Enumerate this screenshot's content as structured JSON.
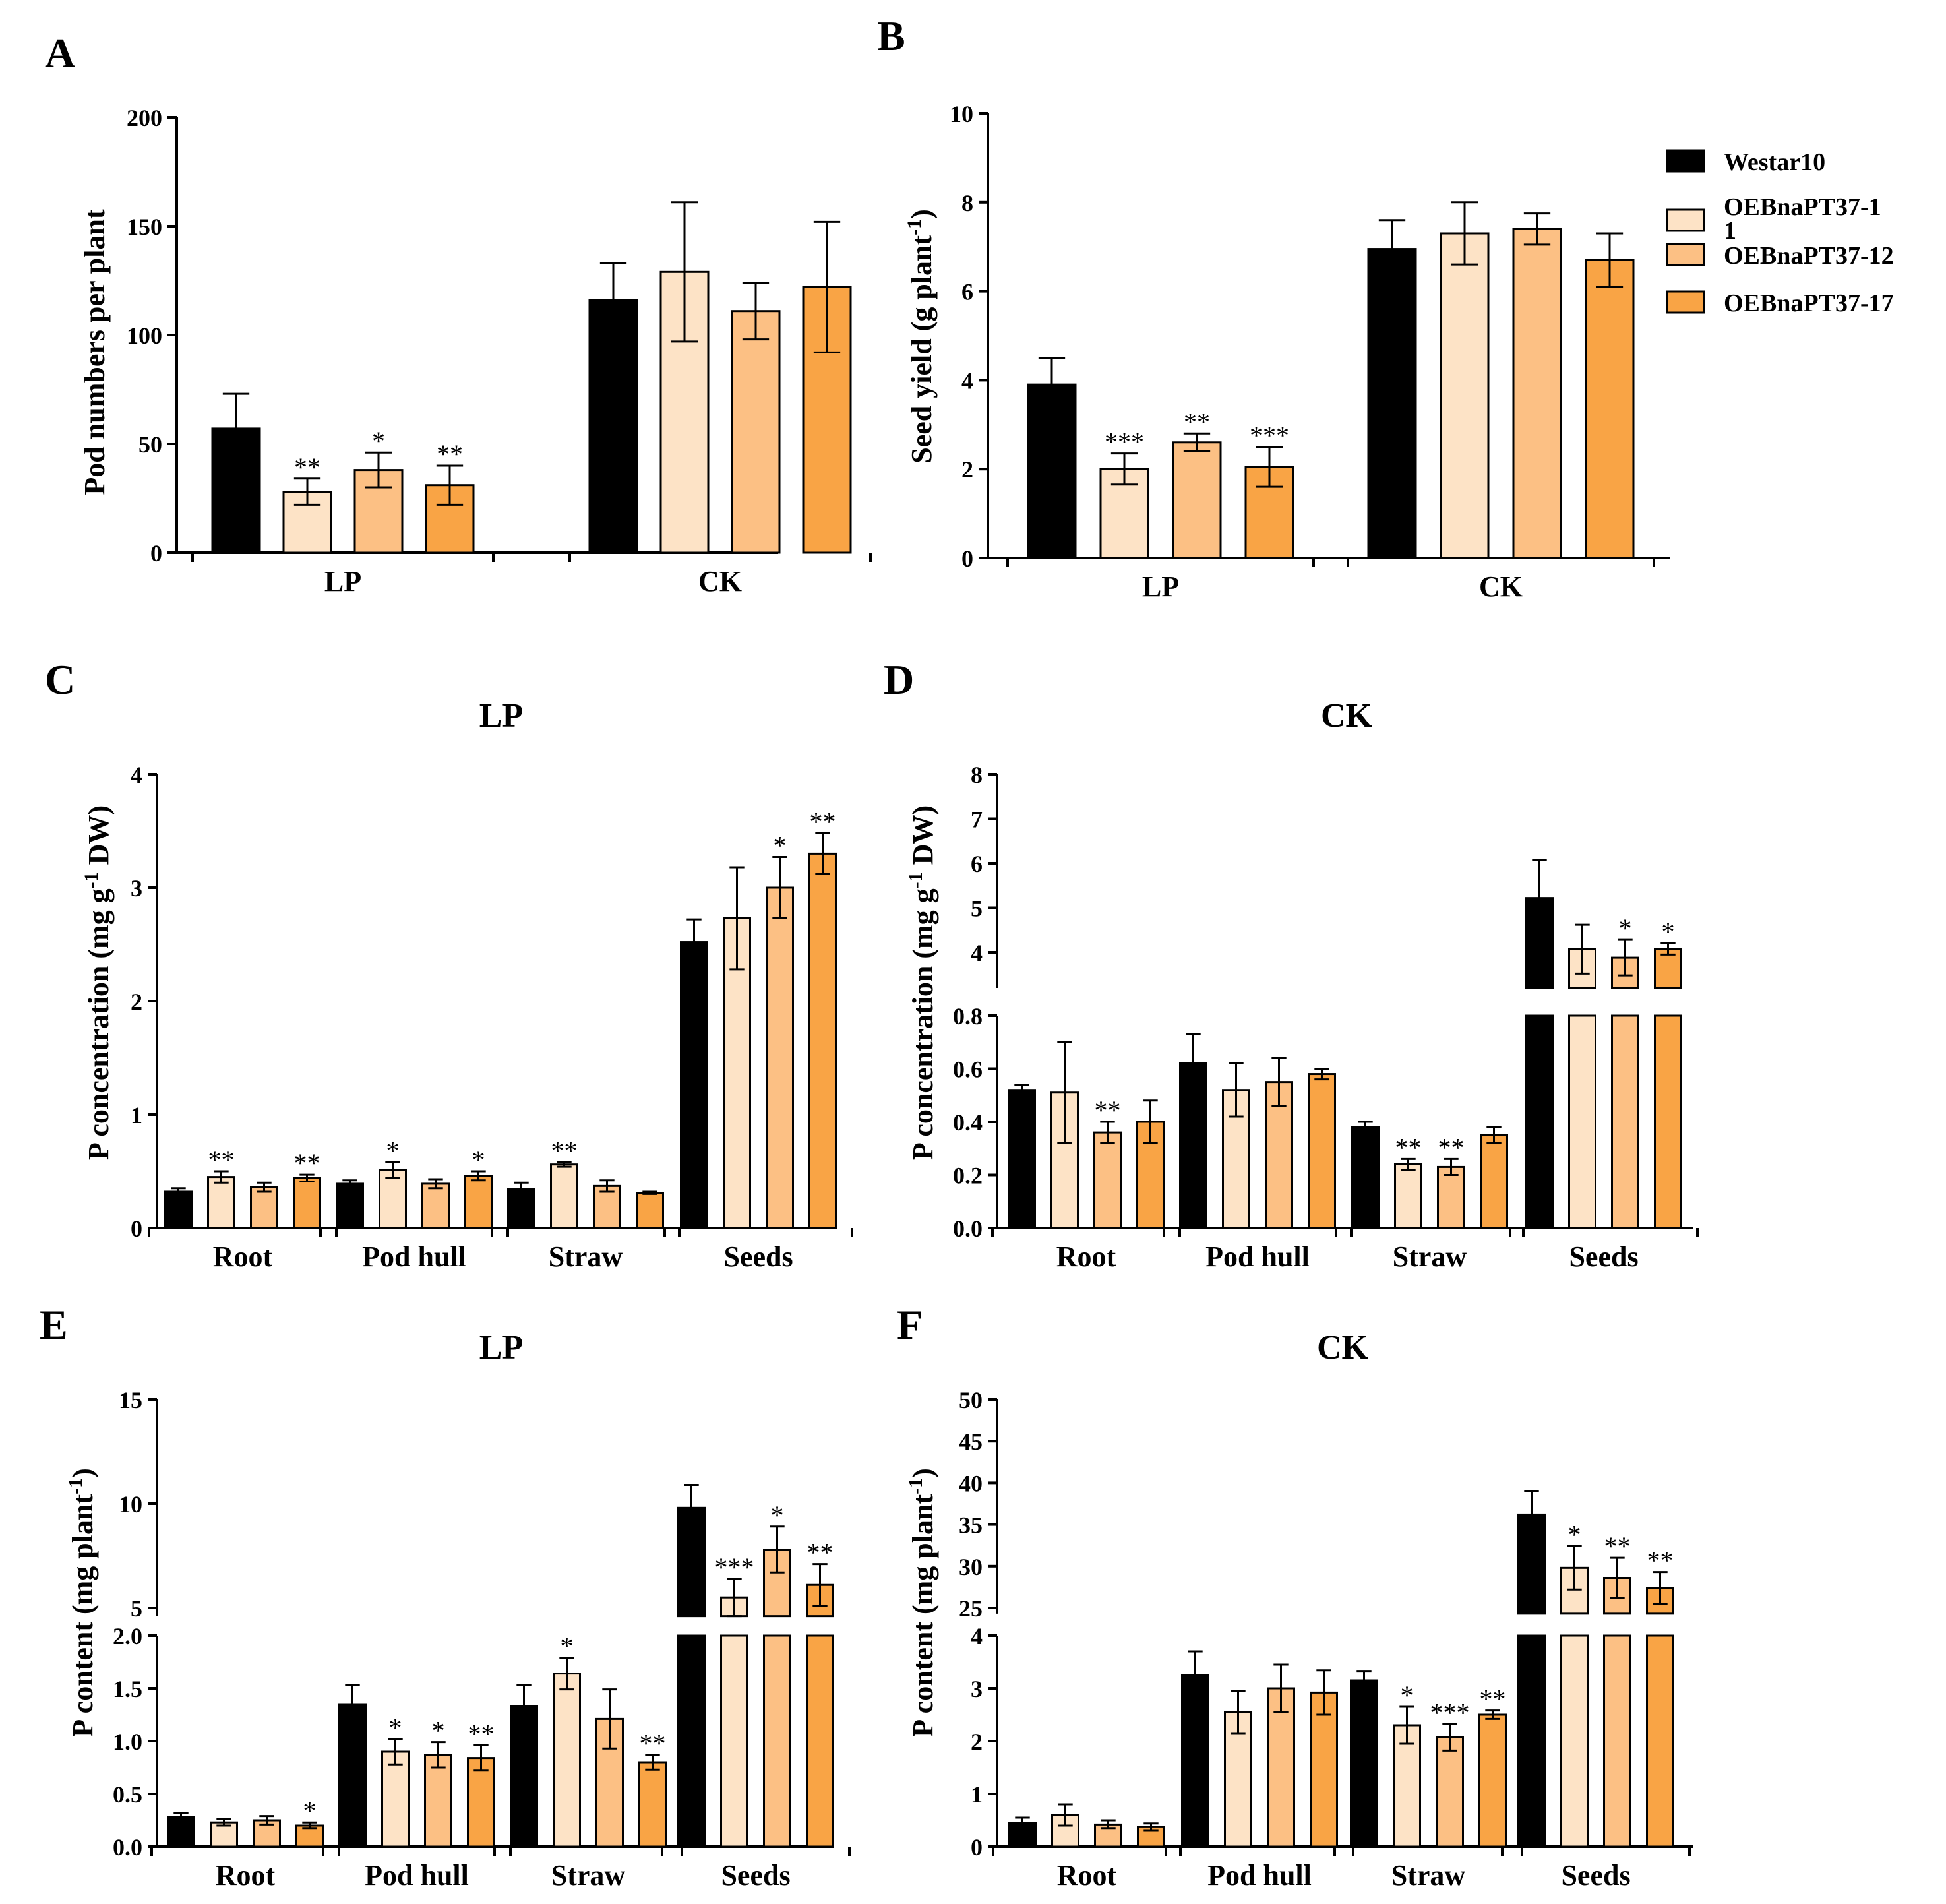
{
  "colors": {
    "Westar10": "#000000",
    "OEBnaPT37-11": "#fde3c6",
    "OEBnaPT37-12": "#fcc084",
    "OEBnaPT37-17": "#f9a445"
  },
  "legend": {
    "items": [
      {
        "label": "Westar10",
        "color": "#000000"
      },
      {
        "label": "OEBnaPT37-1",
        "label2": "1",
        "color": "#fde3c6"
      },
      {
        "label": "OEBnaPT37-12",
        "color": "#fcc084"
      },
      {
        "label": "OEBnaPT37-17",
        "color": "#f9a445"
      }
    ]
  },
  "chart_data": [
    {
      "panel": "A",
      "type": "bar",
      "title": "",
      "ylabel": "Pod numbers per plant",
      "ylim": [
        0,
        200
      ],
      "yticks": [
        0,
        50,
        100,
        150,
        200
      ],
      "categories": [
        "LP",
        "CK"
      ],
      "series": [
        {
          "name": "Westar10",
          "values": [
            57,
            116
          ],
          "errors": [
            16,
            17
          ],
          "sig": [
            "",
            ""
          ]
        },
        {
          "name": "OEBnaPT37-11",
          "values": [
            28,
            129
          ],
          "errors": [
            6,
            32
          ],
          "sig": [
            "**",
            ""
          ]
        },
        {
          "name": "OEBnaPT37-12",
          "values": [
            38,
            111
          ],
          "errors": [
            8,
            13
          ],
          "sig": [
            "*",
            ""
          ]
        },
        {
          "name": "OEBnaPT37-17",
          "values": [
            31,
            122
          ],
          "errors": [
            9,
            30
          ],
          "sig": [
            "**",
            ""
          ]
        }
      ]
    },
    {
      "panel": "B",
      "type": "bar",
      "title": "",
      "ylabel": "Seed yield (g plant-1)",
      "ylim": [
        0,
        10
      ],
      "yticks": [
        0,
        2,
        4,
        6,
        8,
        10
      ],
      "categories": [
        "LP",
        "CK"
      ],
      "series": [
        {
          "name": "Westar10",
          "values": [
            3.9,
            6.95
          ],
          "errors": [
            0.6,
            0.65
          ],
          "sig": [
            "",
            ""
          ]
        },
        {
          "name": "OEBnaPT37-11",
          "values": [
            2.0,
            7.3
          ],
          "errors": [
            0.35,
            0.7
          ],
          "sig": [
            "***",
            ""
          ]
        },
        {
          "name": "OEBnaPT37-12",
          "values": [
            2.6,
            7.4
          ],
          "errors": [
            0.2,
            0.35
          ],
          "sig": [
            "**",
            ""
          ]
        },
        {
          "name": "OEBnaPT37-17",
          "values": [
            2.05,
            6.7
          ],
          "errors": [
            0.45,
            0.6
          ],
          "sig": [
            "***",
            ""
          ]
        }
      ]
    },
    {
      "panel": "C",
      "type": "bar",
      "title": "LP",
      "ylabel": "P concentration (mg g-1 DW)",
      "ylim": [
        0,
        4
      ],
      "yticks": [
        0,
        1,
        2,
        3,
        4
      ],
      "categories": [
        "Root",
        "Pod hull",
        "Straw",
        "Seeds"
      ],
      "series": [
        {
          "name": "Westar10",
          "values": [
            0.32,
            0.39,
            0.34,
            2.52
          ],
          "errors": [
            0.03,
            0.03,
            0.06,
            0.2
          ],
          "sig": [
            "",
            "",
            "",
            ""
          ]
        },
        {
          "name": "OEBnaPT37-11",
          "values": [
            0.45,
            0.51,
            0.56,
            2.73
          ],
          "errors": [
            0.05,
            0.07,
            0.02,
            0.45
          ],
          "sig": [
            "**",
            "*",
            "**",
            ""
          ]
        },
        {
          "name": "OEBnaPT37-12",
          "values": [
            0.36,
            0.39,
            0.37,
            3.0
          ],
          "errors": [
            0.04,
            0.04,
            0.05,
            0.27
          ],
          "sig": [
            "",
            "",
            "",
            "*"
          ]
        },
        {
          "name": "OEBnaPT37-17",
          "values": [
            0.44,
            0.46,
            0.31,
            3.3
          ],
          "errors": [
            0.03,
            0.04,
            0.01,
            0.18
          ],
          "sig": [
            "**",
            "*",
            "",
            "**"
          ]
        }
      ]
    },
    {
      "panel": "D",
      "type": "bar",
      "title": "CK",
      "ylabel": "P concentration (mg g-1 DW)",
      "ylim": [
        0,
        8
      ],
      "yticks_lower": [
        0.0,
        0.2,
        0.4,
        0.6,
        0.8
      ],
      "yticks_upper": [
        4,
        5,
        6,
        7,
        8
      ],
      "axis_break": [
        0.8,
        3.2
      ],
      "categories": [
        "Root",
        "Pod hull",
        "Straw",
        "Seeds"
      ],
      "series": [
        {
          "name": "Westar10",
          "values": [
            0.52,
            0.62,
            0.38,
            5.22
          ],
          "errors": [
            0.02,
            0.11,
            0.02,
            0.85
          ],
          "sig": [
            "",
            "",
            "",
            ""
          ]
        },
        {
          "name": "OEBnaPT37-11",
          "values": [
            0.51,
            0.52,
            0.24,
            4.07
          ],
          "errors": [
            0.19,
            0.1,
            0.02,
            0.55
          ],
          "sig": [
            "",
            "",
            "**",
            ""
          ]
        },
        {
          "name": "OEBnaPT37-12",
          "values": [
            0.36,
            0.55,
            0.23,
            3.88
          ],
          "errors": [
            0.04,
            0.09,
            0.03,
            0.4
          ],
          "sig": [
            "**",
            "",
            "**",
            "*"
          ]
        },
        {
          "name": "OEBnaPT37-17",
          "values": [
            0.4,
            0.58,
            0.35,
            4.08
          ],
          "errors": [
            0.08,
            0.02,
            0.03,
            0.13
          ],
          "sig": [
            "",
            "",
            "",
            "*"
          ]
        }
      ]
    },
    {
      "panel": "E",
      "type": "bar",
      "title": "LP",
      "ylabel": "P content (mg plant-1)",
      "ylim": [
        0,
        15
      ],
      "yticks_lower": [
        0.0,
        0.5,
        1.0,
        1.5,
        2.0
      ],
      "yticks_upper": [
        5,
        10,
        15
      ],
      "axis_break": [
        2.0,
        4.6
      ],
      "categories": [
        "Root",
        "Pod hull",
        "Straw",
        "Seeds"
      ],
      "series": [
        {
          "name": "Westar10",
          "values": [
            0.28,
            1.35,
            1.33,
            9.8
          ],
          "errors": [
            0.04,
            0.18,
            0.2,
            1.1
          ],
          "sig": [
            "",
            "",
            "",
            ""
          ]
        },
        {
          "name": "OEBnaPT37-11",
          "values": [
            0.23,
            0.9,
            1.64,
            5.5
          ],
          "errors": [
            0.03,
            0.12,
            0.15,
            0.9
          ],
          "sig": [
            "",
            "*",
            "*",
            "***"
          ]
        },
        {
          "name": "OEBnaPT37-12",
          "values": [
            0.25,
            0.87,
            1.21,
            7.8
          ],
          "errors": [
            0.04,
            0.12,
            0.28,
            1.1
          ],
          "sig": [
            "",
            "*",
            "",
            "*"
          ]
        },
        {
          "name": "OEBnaPT37-17",
          "values": [
            0.2,
            0.84,
            0.8,
            6.1
          ],
          "errors": [
            0.03,
            0.12,
            0.07,
            1.0
          ],
          "sig": [
            "*",
            "**",
            "**",
            "**"
          ]
        }
      ]
    },
    {
      "panel": "F",
      "type": "bar",
      "title": "CK",
      "ylabel": "P content (mg plant-1)",
      "ylim": [
        0,
        50
      ],
      "yticks_lower": [
        0,
        1,
        2,
        3,
        4
      ],
      "yticks_upper": [
        25,
        30,
        35,
        40,
        45,
        50
      ],
      "axis_break": [
        4,
        24.3
      ],
      "categories": [
        "Root",
        "Pod hull",
        "Straw",
        "Seeds"
      ],
      "series": [
        {
          "name": "Westar10",
          "values": [
            0.45,
            3.25,
            3.15,
            36.2
          ],
          "errors": [
            0.1,
            0.45,
            0.18,
            2.8
          ],
          "sig": [
            "",
            "",
            "",
            ""
          ]
        },
        {
          "name": "OEBnaPT37-11",
          "values": [
            0.6,
            2.55,
            2.3,
            29.8
          ],
          "errors": [
            0.2,
            0.4,
            0.35,
            2.6
          ],
          "sig": [
            "",
            "",
            "*",
            "*"
          ]
        },
        {
          "name": "OEBnaPT37-12",
          "values": [
            0.42,
            3.0,
            2.07,
            28.6
          ],
          "errors": [
            0.08,
            0.45,
            0.25,
            2.4
          ],
          "sig": [
            "",
            "",
            "***",
            "**"
          ]
        },
        {
          "name": "OEBnaPT37-17",
          "values": [
            0.37,
            2.92,
            2.5,
            27.4
          ],
          "errors": [
            0.07,
            0.42,
            0.08,
            1.9
          ],
          "sig": [
            "",
            "",
            "**",
            "**"
          ]
        }
      ]
    }
  ],
  "panel_letters": [
    "A",
    "B",
    "C",
    "D",
    "E",
    "F"
  ],
  "category_labels": {
    "ab": [
      "LP",
      "CK"
    ],
    "cdef": [
      "Root",
      "Pod hull",
      "Straw",
      "Seeds"
    ]
  },
  "panel_titles": {
    "C": "LP",
    "D": "CK",
    "E": "LP",
    "F": "CK"
  },
  "ylabels": {
    "A": "Pod numbers per plant",
    "B": "Seed yield (g plant",
    "B_sup": "-1",
    "B_end": ")",
    "C": "P concentration (mg g",
    "C_sup": "-1",
    "C_end": " DW)",
    "D": "P concentration (mg g",
    "D_sup": "-1",
    "D_end": " DW)",
    "E": "P content (mg plant",
    "E_sup": "-1",
    "E_end": ")",
    "F": "P content (mg plant",
    "F_sup": "-1",
    "F_end": ")"
  }
}
